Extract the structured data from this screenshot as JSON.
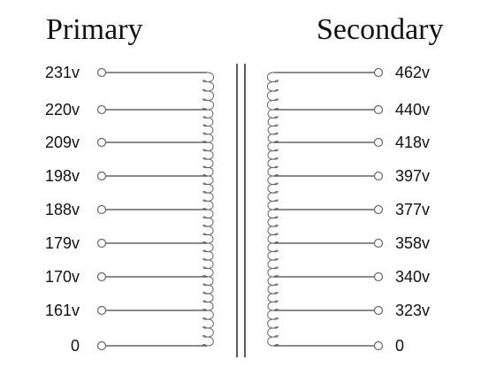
{
  "primary": {
    "title": "Primary",
    "taps": [
      "231v",
      "220v",
      "209v",
      "198v",
      "188v",
      "179v",
      "170v",
      "161v",
      "0"
    ]
  },
  "secondary": {
    "title": "Secondary",
    "taps": [
      "462v",
      "440v",
      "418v",
      "397v",
      "377v",
      "358v",
      "340v",
      "323v",
      "0"
    ]
  }
}
